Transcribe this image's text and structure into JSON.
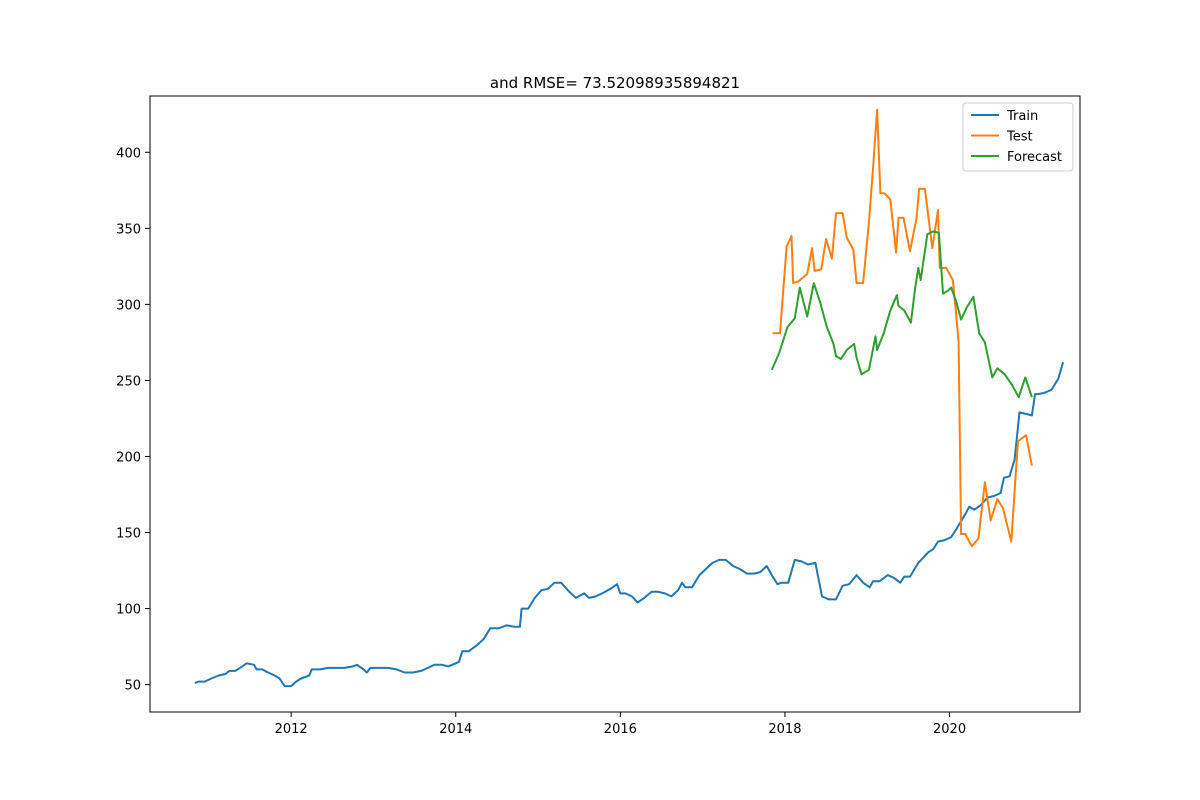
{
  "chart_data": {
    "type": "line",
    "title": "and RMSE= 73.52098935894821",
    "xlabel": "",
    "ylabel": "",
    "x_ticks": [
      2012,
      2014,
      2016,
      2018,
      2020
    ],
    "y_ticks": [
      50,
      100,
      150,
      200,
      250,
      300,
      350,
      400
    ],
    "xlim": [
      2010.285,
      2021.585
    ],
    "ylim": [
      32,
      437
    ],
    "grid": false,
    "legend_placement": "top-right",
    "series": [
      {
        "name": "Train",
        "color": "#1f77b4",
        "points": [
          [
            2010.83,
            51
          ],
          [
            2010.87,
            52
          ],
          [
            2010.95,
            52
          ],
          [
            2011.03,
            54
          ],
          [
            2011.12,
            56
          ],
          [
            2011.2,
            57
          ],
          [
            2011.25,
            59
          ],
          [
            2011.32,
            59
          ],
          [
            2011.38,
            61
          ],
          [
            2011.46,
            64
          ],
          [
            2011.55,
            63
          ],
          [
            2011.58,
            60
          ],
          [
            2011.65,
            60
          ],
          [
            2011.72,
            58
          ],
          [
            2011.8,
            56
          ],
          [
            2011.86,
            54
          ],
          [
            2011.92,
            49
          ],
          [
            2012.0,
            49
          ],
          [
            2012.06,
            52
          ],
          [
            2012.12,
            54
          ],
          [
            2012.22,
            56
          ],
          [
            2012.25,
            60
          ],
          [
            2012.35,
            60
          ],
          [
            2012.45,
            61
          ],
          [
            2012.55,
            61
          ],
          [
            2012.65,
            61
          ],
          [
            2012.75,
            62
          ],
          [
            2012.8,
            63
          ],
          [
            2012.88,
            60
          ],
          [
            2012.92,
            58
          ],
          [
            2012.96,
            61
          ],
          [
            2013.06,
            61
          ],
          [
            2013.18,
            61
          ],
          [
            2013.28,
            60
          ],
          [
            2013.38,
            58
          ],
          [
            2013.48,
            58
          ],
          [
            2013.58,
            59
          ],
          [
            2013.66,
            61
          ],
          [
            2013.74,
            63
          ],
          [
            2013.83,
            63
          ],
          [
            2013.91,
            62
          ],
          [
            2014.0,
            64
          ],
          [
            2014.04,
            65
          ],
          [
            2014.08,
            72
          ],
          [
            2014.16,
            72
          ],
          [
            2014.26,
            76
          ],
          [
            2014.34,
            80
          ],
          [
            2014.42,
            87
          ],
          [
            2014.52,
            87
          ],
          [
            2014.62,
            89
          ],
          [
            2014.71,
            88
          ],
          [
            2014.78,
            88
          ],
          [
            2014.8,
            100
          ],
          [
            2014.88,
            100
          ],
          [
            2014.96,
            107
          ],
          [
            2015.04,
            112
          ],
          [
            2015.12,
            113
          ],
          [
            2015.2,
            117
          ],
          [
            2015.28,
            117
          ],
          [
            2015.38,
            111
          ],
          [
            2015.46,
            107
          ],
          [
            2015.56,
            110
          ],
          [
            2015.62,
            107
          ],
          [
            2015.7,
            108
          ],
          [
            2015.78,
            110
          ],
          [
            2015.88,
            113
          ],
          [
            2015.96,
            116
          ],
          [
            2016.0,
            110
          ],
          [
            2016.06,
            110
          ],
          [
            2016.14,
            108
          ],
          [
            2016.21,
            104
          ],
          [
            2016.29,
            107
          ],
          [
            2016.38,
            111
          ],
          [
            2016.46,
            111
          ],
          [
            2016.54,
            110
          ],
          [
            2016.62,
            108
          ],
          [
            2016.7,
            112
          ],
          [
            2016.75,
            117
          ],
          [
            2016.79,
            114
          ],
          [
            2016.87,
            114
          ],
          [
            2016.96,
            122
          ],
          [
            2017.04,
            126
          ],
          [
            2017.12,
            130
          ],
          [
            2017.2,
            132
          ],
          [
            2017.28,
            132
          ],
          [
            2017.37,
            128
          ],
          [
            2017.45,
            126
          ],
          [
            2017.54,
            123
          ],
          [
            2017.62,
            123
          ],
          [
            2017.7,
            124
          ],
          [
            2017.78,
            128
          ],
          [
            2017.85,
            121
          ],
          [
            2017.91,
            116
          ],
          [
            2017.96,
            117
          ],
          [
            2018.04,
            117
          ],
          [
            2018.12,
            132
          ],
          [
            2018.2,
            131
          ],
          [
            2018.28,
            129
          ],
          [
            2018.37,
            130
          ],
          [
            2018.45,
            108
          ],
          [
            2018.53,
            106
          ],
          [
            2018.62,
            106
          ],
          [
            2018.7,
            115
          ],
          [
            2018.78,
            116
          ],
          [
            2018.87,
            122
          ],
          [
            2018.95,
            117
          ],
          [
            2019.03,
            114
          ],
          [
            2019.07,
            118
          ],
          [
            2019.15,
            118
          ],
          [
            2019.25,
            122
          ],
          [
            2019.33,
            120
          ],
          [
            2019.4,
            117
          ],
          [
            2019.45,
            121
          ],
          [
            2019.52,
            121
          ],
          [
            2019.62,
            130
          ],
          [
            2019.74,
            137
          ],
          [
            2019.8,
            139
          ],
          [
            2019.86,
            144
          ],
          [
            2019.94,
            145
          ],
          [
            2020.02,
            147
          ],
          [
            2020.08,
            152
          ],
          [
            2020.19,
            162
          ],
          [
            2020.24,
            167
          ],
          [
            2020.3,
            165
          ],
          [
            2020.38,
            168
          ],
          [
            2020.46,
            173
          ],
          [
            2020.54,
            174
          ],
          [
            2020.62,
            176
          ],
          [
            2020.66,
            186
          ],
          [
            2020.73,
            187
          ],
          [
            2020.79,
            198
          ],
          [
            2020.85,
            229
          ],
          [
            2020.93,
            228
          ],
          [
            2021.0,
            227
          ],
          [
            2021.04,
            241
          ],
          [
            2021.08,
            241
          ],
          [
            2021.16,
            242
          ],
          [
            2021.24,
            244
          ],
          [
            2021.32,
            251
          ],
          [
            2021.38,
            262
          ]
        ]
      },
      {
        "name": "Test",
        "color": "#ff7f0e",
        "points": [
          [
            2017.85,
            281
          ],
          [
            2017.94,
            281
          ],
          [
            2018.02,
            338
          ],
          [
            2018.08,
            345
          ],
          [
            2018.1,
            314
          ],
          [
            2018.16,
            315
          ],
          [
            2018.27,
            320
          ],
          [
            2018.33,
            337
          ],
          [
            2018.36,
            322
          ],
          [
            2018.44,
            323
          ],
          [
            2018.5,
            343
          ],
          [
            2018.57,
            330
          ],
          [
            2018.62,
            360
          ],
          [
            2018.7,
            360
          ],
          [
            2018.75,
            344
          ],
          [
            2018.83,
            336
          ],
          [
            2018.87,
            314
          ],
          [
            2018.95,
            314
          ],
          [
            2019.02,
            354
          ],
          [
            2019.07,
            389
          ],
          [
            2019.12,
            428
          ],
          [
            2019.16,
            373
          ],
          [
            2019.21,
            373
          ],
          [
            2019.28,
            369
          ],
          [
            2019.35,
            334
          ],
          [
            2019.38,
            357
          ],
          [
            2019.44,
            357
          ],
          [
            2019.52,
            335
          ],
          [
            2019.6,
            357
          ],
          [
            2019.63,
            376
          ],
          [
            2019.7,
            376
          ],
          [
            2019.79,
            337
          ],
          [
            2019.86,
            362
          ],
          [
            2019.88,
            324
          ],
          [
            2019.96,
            324
          ],
          [
            2020.04,
            316
          ],
          [
            2020.08,
            294
          ],
          [
            2020.11,
            275
          ],
          [
            2020.14,
            149
          ],
          [
            2020.19,
            149
          ],
          [
            2020.27,
            141
          ],
          [
            2020.35,
            146
          ],
          [
            2020.43,
            183
          ],
          [
            2020.5,
            158
          ],
          [
            2020.58,
            172
          ],
          [
            2020.65,
            166
          ],
          [
            2020.75,
            144
          ],
          [
            2020.83,
            210
          ],
          [
            2020.93,
            214
          ],
          [
            2021.0,
            194
          ]
        ]
      },
      {
        "name": "Forecast",
        "color": "#2ca02c",
        "points": [
          [
            2017.84,
            257
          ],
          [
            2017.93,
            268
          ],
          [
            2018.03,
            285
          ],
          [
            2018.12,
            291
          ],
          [
            2018.18,
            311
          ],
          [
            2018.27,
            292
          ],
          [
            2018.35,
            314
          ],
          [
            2018.43,
            301
          ],
          [
            2018.51,
            285
          ],
          [
            2018.59,
            274
          ],
          [
            2018.62,
            266
          ],
          [
            2018.68,
            264
          ],
          [
            2018.75,
            270
          ],
          [
            2018.84,
            274
          ],
          [
            2018.87,
            265
          ],
          [
            2018.93,
            254
          ],
          [
            2019.02,
            257
          ],
          [
            2019.1,
            279
          ],
          [
            2019.12,
            270
          ],
          [
            2019.2,
            281
          ],
          [
            2019.28,
            296
          ],
          [
            2019.36,
            306
          ],
          [
            2019.38,
            299
          ],
          [
            2019.45,
            296
          ],
          [
            2019.53,
            288
          ],
          [
            2019.58,
            310
          ],
          [
            2019.62,
            324
          ],
          [
            2019.65,
            316
          ],
          [
            2019.73,
            346
          ],
          [
            2019.8,
            348
          ],
          [
            2019.87,
            347
          ],
          [
            2019.92,
            307
          ],
          [
            2019.98,
            309
          ],
          [
            2020.02,
            311
          ],
          [
            2020.08,
            302
          ],
          [
            2020.14,
            290
          ],
          [
            2020.21,
            298
          ],
          [
            2020.29,
            305
          ],
          [
            2020.36,
            281
          ],
          [
            2020.43,
            275
          ],
          [
            2020.52,
            252
          ],
          [
            2020.58,
            258
          ],
          [
            2020.67,
            254
          ],
          [
            2020.76,
            247
          ],
          [
            2020.84,
            239
          ],
          [
            2020.92,
            252
          ],
          [
            2021.0,
            239
          ]
        ]
      }
    ]
  }
}
